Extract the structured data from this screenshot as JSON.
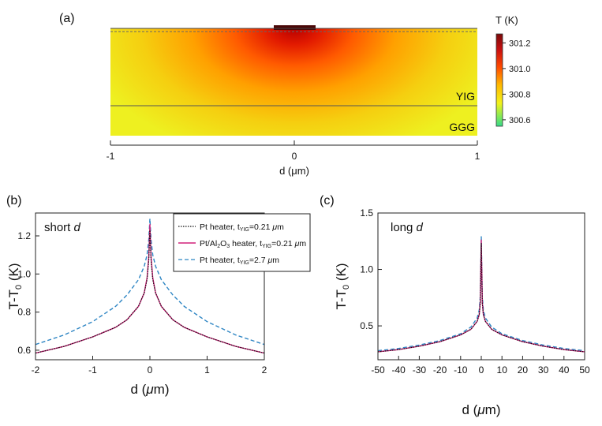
{
  "panel_a": {
    "label": "(a)",
    "layer_labels": [
      "YIG",
      "GGG"
    ],
    "axis": {
      "label": "d (μm)",
      "ticks": [
        -1,
        0,
        1
      ]
    },
    "colorbar": {
      "title": "T (K)",
      "ticks": [
        "301.2",
        "301.0",
        "300.8",
        "300.6"
      ],
      "tick_values": [
        301.2,
        301.0,
        300.8,
        300.6
      ],
      "range": [
        300.55,
        301.27
      ],
      "colors": [
        "#7a0a0a",
        "#c81010",
        "#ff4a00",
        "#ffb800",
        "#f2f21a",
        "#7fe85a",
        "#36d98a"
      ]
    }
  },
  "chart_data": [
    {
      "type": "line",
      "panel": "(b)",
      "annotation": "short d",
      "xlabel": "d (μm)",
      "ylabel": "T-T0 (K)",
      "xlim": [
        -2,
        2
      ],
      "ylim": [
        0.55,
        1.32
      ],
      "xticks": [
        -2,
        -1,
        0,
        1,
        2
      ],
      "yticks": [
        0.6,
        0.8,
        1.0,
        1.2
      ],
      "ytick_labels": [
        "0.6",
        "0.8",
        "1.0",
        "1.2"
      ],
      "legend_position": "top-right",
      "x": [
        -2,
        -1.5,
        -1,
        -0.6,
        -0.4,
        -0.2,
        -0.1,
        -0.05,
        -0.02,
        0,
        0.02,
        0.05,
        0.1,
        0.2,
        0.4,
        0.6,
        1,
        1.5,
        2
      ],
      "series": [
        {
          "name": "Pt heater, tYIG=0.21 μm",
          "color": "#111111",
          "style": "dotted",
          "values": [
            0.585,
            0.62,
            0.67,
            0.72,
            0.76,
            0.83,
            0.9,
            0.97,
            1.07,
            1.23,
            1.07,
            0.97,
            0.9,
            0.83,
            0.76,
            0.72,
            0.67,
            0.62,
            0.585
          ]
        },
        {
          "name": "Pt/Al2O3 heater, tYIG=0.21 μm",
          "color": "#d0207a",
          "style": "solid",
          "values": [
            0.585,
            0.62,
            0.67,
            0.72,
            0.76,
            0.83,
            0.9,
            0.98,
            1.09,
            1.26,
            1.09,
            0.98,
            0.9,
            0.83,
            0.76,
            0.72,
            0.67,
            0.62,
            0.585
          ]
        },
        {
          "name": "Pt heater, tYIG=2.7 μm",
          "color": "#2f86c4",
          "style": "dashed",
          "values": [
            0.63,
            0.68,
            0.75,
            0.83,
            0.89,
            0.97,
            1.04,
            1.1,
            1.18,
            1.29,
            1.18,
            1.1,
            1.04,
            0.97,
            0.89,
            0.83,
            0.75,
            0.68,
            0.63
          ]
        }
      ]
    },
    {
      "type": "line",
      "panel": "(c)",
      "annotation": "long d",
      "xlabel": "d (μm)",
      "ylabel": "T-T0 (K)",
      "xlim": [
        -50,
        50
      ],
      "ylim": [
        0.2,
        1.5
      ],
      "xticks": [
        -50,
        -40,
        -30,
        -20,
        -10,
        0,
        10,
        20,
        30,
        40,
        50
      ],
      "yticks": [
        0.5,
        1.0,
        1.5
      ],
      "ytick_labels": [
        "0.5",
        "1.0",
        "1.5"
      ],
      "x": [
        -50,
        -40,
        -30,
        -20,
        -10,
        -5,
        -2,
        -1,
        -0.5,
        0,
        0.5,
        1,
        2,
        5,
        10,
        20,
        30,
        40,
        50
      ],
      "series": [
        {
          "color": "#111111",
          "style": "dotted",
          "values": [
            0.27,
            0.29,
            0.32,
            0.36,
            0.42,
            0.47,
            0.54,
            0.6,
            0.7,
            1.23,
            0.7,
            0.6,
            0.54,
            0.47,
            0.42,
            0.36,
            0.32,
            0.29,
            0.27
          ]
        },
        {
          "color": "#d0207a",
          "style": "solid",
          "values": [
            0.27,
            0.29,
            0.32,
            0.36,
            0.42,
            0.47,
            0.54,
            0.6,
            0.71,
            1.26,
            0.71,
            0.6,
            0.54,
            0.47,
            0.42,
            0.36,
            0.32,
            0.29,
            0.27
          ]
        },
        {
          "color": "#2f86c4",
          "style": "dashed",
          "values": [
            0.28,
            0.3,
            0.33,
            0.37,
            0.43,
            0.49,
            0.57,
            0.64,
            0.76,
            1.29,
            0.76,
            0.64,
            0.57,
            0.49,
            0.43,
            0.37,
            0.33,
            0.3,
            0.28
          ]
        }
      ]
    }
  ]
}
